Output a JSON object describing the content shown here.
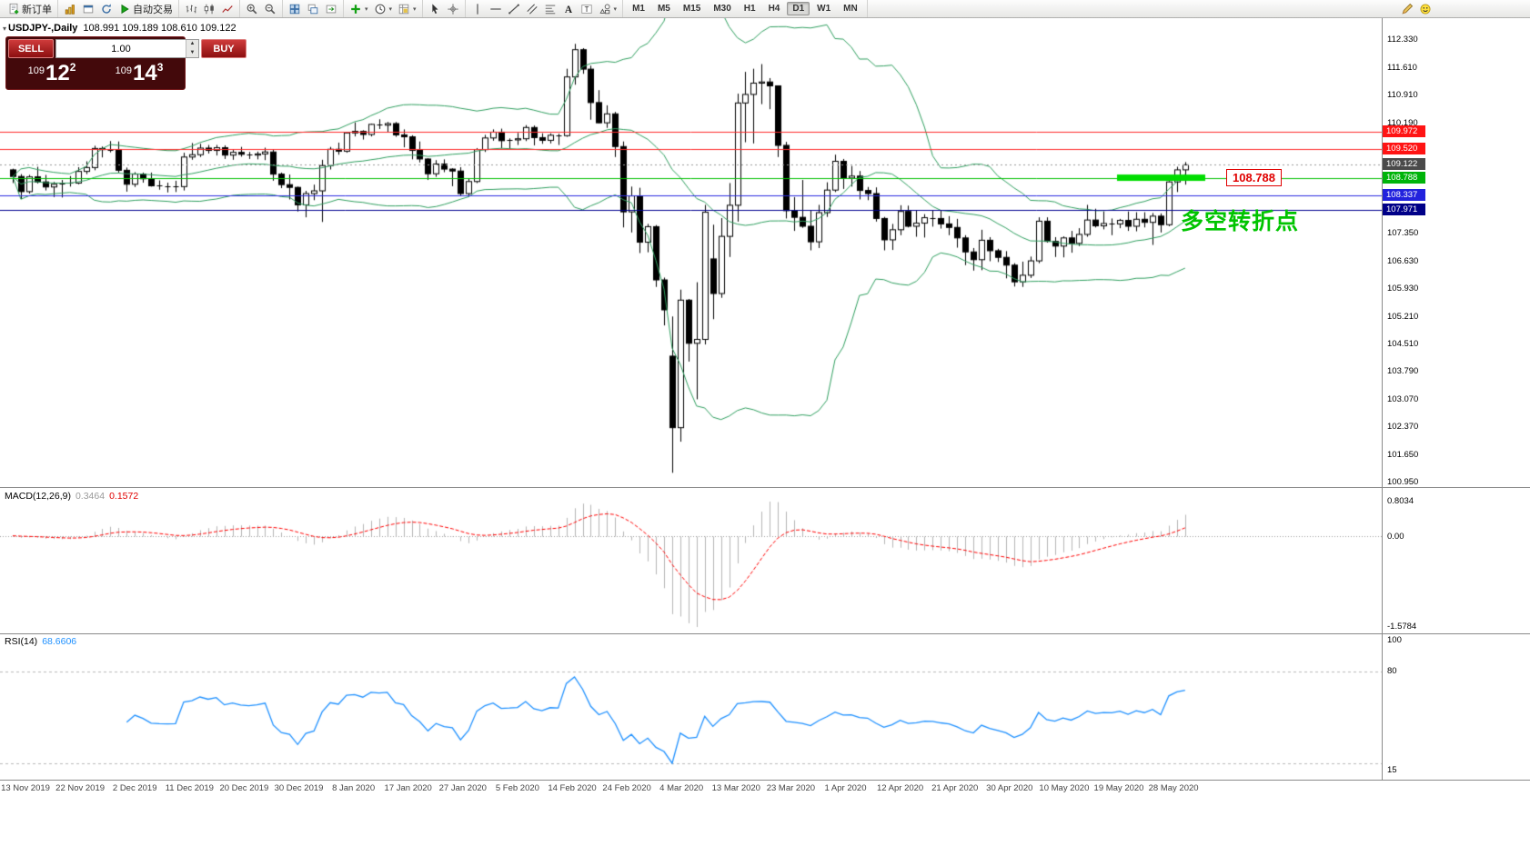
{
  "toolbar": {
    "groups": [
      {
        "items": [
          {
            "name": "new-order",
            "icon": "doc-plus",
            "label": "新订单"
          }
        ]
      },
      {
        "items": [
          {
            "name": "market-watch",
            "icon": "gold-chart"
          },
          {
            "name": "new-chart-window",
            "icon": "window"
          },
          {
            "name": "refresh-charts",
            "icon": "refresh"
          },
          {
            "name": "autotrading",
            "icon": "play",
            "label": "自动交易"
          }
        ]
      },
      {
        "items": [
          {
            "name": "bar-chart-mode",
            "icon": "bars"
          },
          {
            "name": "candlestick-mode",
            "icon": "candles"
          },
          {
            "name": "line-chart-mode",
            "icon": "line"
          }
        ]
      },
      {
        "items": [
          {
            "name": "zoom-in",
            "icon": "zoom-in"
          },
          {
            "name": "zoom-out",
            "icon": "zoom-out"
          }
        ]
      },
      {
        "items": [
          {
            "name": "tile-windows",
            "icon": "tile"
          },
          {
            "name": "cascade-windows",
            "icon": "arrange"
          },
          {
            "name": "auto-scroll",
            "icon": "track"
          }
        ]
      },
      {
        "items": [
          {
            "name": "indicators-list",
            "icon": "ind-plus",
            "caret": true
          },
          {
            "name": "periods",
            "icon": "clock",
            "caret": true
          },
          {
            "name": "templates",
            "icon": "template",
            "caret": true
          }
        ]
      },
      {
        "items": [
          {
            "name": "cursor-tool",
            "icon": "cursor"
          },
          {
            "name": "crosshair-tool",
            "icon": "crosshair"
          }
        ]
      },
      {
        "items": [
          {
            "name": "vertical-line-tool",
            "icon": "vline"
          },
          {
            "name": "horizontal-line-tool",
            "icon": "hline"
          },
          {
            "name": "trendline-tool",
            "icon": "trend"
          },
          {
            "name": "equidistant-channel-tool",
            "icon": "channel"
          },
          {
            "name": "fibonacci-tool",
            "icon": "fibo"
          },
          {
            "name": "text-tool",
            "icon": "textA"
          },
          {
            "name": "text-label-tool",
            "icon": "labelT"
          },
          {
            "name": "shapes-tool",
            "icon": "shapes",
            "caret": true
          }
        ]
      }
    ],
    "timeframes": [
      "M1",
      "M5",
      "M15",
      "M30",
      "H1",
      "H4",
      "D1",
      "W1",
      "MN"
    ],
    "active_timeframe": "D1",
    "right_icons": [
      {
        "name": "pencil"
      },
      {
        "name": "smiley"
      }
    ],
    "caret_glyph": "▾"
  },
  "chart": {
    "symbol": "USDJPY-,Daily",
    "ohlc_text": "108.991 109.189 108.610 109.122",
    "toggle_glyph": "▾",
    "price_scale": [
      "112.330",
      "111.610",
      "110.910",
      "110.190",
      "107.350",
      "106.630",
      "105.930",
      "105.210",
      "104.510",
      "103.790",
      "103.070",
      "102.370",
      "101.650",
      "100.950"
    ],
    "price_tags": [
      {
        "text": "109.972",
        "value": 109.972,
        "bg": "#ff1414"
      },
      {
        "text": "109.520",
        "value": 109.52,
        "bg": "#ff1414"
      },
      {
        "text": "109.122",
        "value": 109.122,
        "bg": "#4a4a4a"
      },
      {
        "text": "108.788",
        "value": 108.788,
        "bg": "#00b40a"
      },
      {
        "text": "108.337",
        "value": 108.337,
        "bg": "#2222dd"
      },
      {
        "text": "107.971",
        "value": 107.971,
        "bg": "#000088"
      }
    ],
    "levels": [
      {
        "value": 109.972,
        "color": "#ff2a2a"
      },
      {
        "value": 109.52,
        "color": "#ff2a2a"
      },
      {
        "value": 108.788,
        "color": "#00c000"
      },
      {
        "value": 108.337,
        "color": "#2a2ae0"
      },
      {
        "value": 107.971,
        "color": "#000090"
      }
    ],
    "current_price": {
      "value": 109.122,
      "line_color": "#999999"
    },
    "support": {
      "label": "108.788",
      "value": 108.788,
      "color": "#00dd00"
    },
    "annotation": {
      "text": "多空转折点",
      "color": "#00c400"
    },
    "dates": [
      "13 Nov 2019",
      "22 Nov 2019",
      "2 Dec 2019",
      "11 Dec 2019",
      "20 Dec 2019",
      "30 Dec 2019",
      "8 Jan 2020",
      "17 Jan 2020",
      "27 Jan 2020",
      "5 Feb 2020",
      "14 Feb 2020",
      "24 Feb 2020",
      "4 Mar 2020",
      "13 Mar 2020",
      "23 Mar 2020",
      "1 Apr 2020",
      "12 Apr 2020",
      "21 Apr 2020",
      "30 Apr 2020",
      "10 May 2020",
      "19 May 2020",
      "28 May 2020"
    ]
  },
  "trade_panel": {
    "sell_label": "SELL",
    "buy_label": "BUY",
    "volume": "1.00",
    "spinner_up": "▲",
    "spinner_down": "▼",
    "sell_price": {
      "base": "109",
      "pips": "12",
      "fraction": "2"
    },
    "buy_price": {
      "base": "109",
      "pips": "14",
      "fraction": "3"
    }
  },
  "indicators": {
    "macd": {
      "name": "MACD(12,26,9)",
      "value_main": "0.3464",
      "value_signal": "0.1572",
      "scale_top": "0.8034",
      "scale_zero": "0.00",
      "scale_bottom": "-1.5784",
      "hist_color": "#b4b4b4",
      "signal_color": "#ff0000"
    },
    "rsi": {
      "name": "RSI(14)",
      "value": "68.6606",
      "scale_top": "100",
      "level_label": "80",
      "scale_bottom": "15",
      "line_color": "#1e90ff",
      "level_color": "#b8b8b8"
    }
  },
  "chart_data": {
    "type": "candlestick",
    "symbol": "USDJPY",
    "timeframe": "Daily",
    "ohlc_current": {
      "open": 108.991,
      "high": 109.189,
      "low": 108.61,
      "close": 109.122
    },
    "colors": {
      "candle_up": "#ffffff",
      "candle_down": "#000000",
      "outline": "#000000",
      "bollinger": "#2e9e5e"
    },
    "bollinger": {
      "period": 20,
      "deviation": 2
    },
    "key_levels": [
      109.972,
      109.52,
      108.788,
      108.337,
      107.971
    ],
    "candles": [
      [
        108.99,
        109.02,
        108.65,
        108.82
      ],
      [
        108.82,
        108.88,
        108.24,
        108.43
      ],
      [
        108.43,
        108.86,
        108.38,
        108.81
      ],
      [
        108.81,
        109.07,
        108.64,
        108.68
      ],
      [
        108.68,
        108.86,
        108.46,
        108.55
      ],
      [
        108.55,
        108.68,
        108.29,
        108.62
      ],
      [
        108.62,
        108.73,
        108.28,
        108.63
      ],
      [
        108.63,
        108.83,
        108.56,
        108.65
      ],
      [
        108.65,
        109.06,
        108.62,
        108.95
      ],
      [
        108.95,
        109.21,
        108.88,
        109.05
      ],
      [
        109.05,
        109.61,
        108.98,
        109.54
      ],
      [
        109.54,
        109.59,
        109.31,
        109.51
      ],
      [
        109.51,
        109.73,
        109.44,
        109.49
      ],
      [
        109.49,
        109.72,
        108.92,
        108.98
      ],
      [
        108.98,
        109.05,
        108.43,
        108.62
      ],
      [
        108.62,
        108.93,
        108.55,
        108.88
      ],
      [
        108.88,
        108.92,
        108.66,
        108.76
      ],
      [
        108.76,
        108.92,
        108.56,
        108.58
      ],
      [
        108.58,
        108.72,
        108.48,
        108.56
      ],
      [
        108.56,
        108.66,
        108.41,
        108.55
      ],
      [
        108.55,
        108.71,
        108.42,
        108.56
      ],
      [
        108.56,
        109.43,
        108.46,
        109.32
      ],
      [
        109.32,
        109.68,
        109.25,
        109.38
      ],
      [
        109.38,
        109.66,
        109.32,
        109.55
      ],
      [
        109.55,
        109.63,
        109.41,
        109.49
      ],
      [
        109.49,
        109.63,
        109.36,
        109.56
      ],
      [
        109.56,
        109.62,
        109.27,
        109.37
      ],
      [
        109.37,
        109.5,
        109.25,
        109.44
      ],
      [
        109.44,
        109.58,
        109.33,
        109.39
      ],
      [
        109.39,
        109.45,
        109.27,
        109.37
      ],
      [
        109.37,
        109.46,
        109.26,
        109.4
      ],
      [
        109.4,
        109.56,
        109.24,
        109.45
      ],
      [
        109.45,
        109.51,
        108.71,
        108.88
      ],
      [
        108.88,
        108.92,
        108.52,
        108.61
      ],
      [
        108.61,
        108.87,
        108.23,
        108.54
      ],
      [
        108.54,
        108.56,
        107.92,
        108.09
      ],
      [
        108.09,
        108.45,
        107.77,
        108.38
      ],
      [
        108.38,
        108.61,
        108.21,
        108.45
      ],
      [
        108.45,
        109.25,
        107.65,
        109.1
      ],
      [
        109.1,
        109.58,
        109.0,
        109.52
      ],
      [
        109.52,
        109.69,
        109.38,
        109.47
      ],
      [
        109.47,
        109.95,
        109.43,
        109.94
      ],
      [
        109.94,
        110.21,
        109.85,
        109.98
      ],
      [
        109.98,
        110.01,
        109.77,
        109.9
      ],
      [
        109.9,
        110.18,
        109.85,
        110.16
      ],
      [
        110.16,
        110.29,
        110.04,
        110.14
      ],
      [
        110.14,
        110.22,
        109.95,
        110.18
      ],
      [
        110.18,
        110.22,
        109.84,
        109.89
      ],
      [
        109.89,
        110.03,
        109.57,
        109.84
      ],
      [
        109.84,
        109.88,
        109.26,
        109.49
      ],
      [
        109.49,
        109.72,
        109.18,
        109.27
      ],
      [
        109.27,
        109.29,
        108.73,
        108.89
      ],
      [
        108.89,
        109.24,
        108.81,
        109.14
      ],
      [
        109.14,
        109.26,
        108.93,
        109.01
      ],
      [
        109.01,
        109.03,
        108.57,
        108.96
      ],
      [
        108.96,
        109.06,
        108.31,
        108.38
      ],
      [
        108.38,
        108.76,
        108.3,
        108.69
      ],
      [
        108.69,
        109.55,
        108.65,
        109.51
      ],
      [
        109.51,
        109.89,
        109.45,
        109.81
      ],
      [
        109.81,
        110.03,
        109.74,
        109.96
      ],
      [
        109.96,
        110.05,
        109.55,
        109.74
      ],
      [
        109.74,
        109.8,
        109.53,
        109.76
      ],
      [
        109.76,
        109.94,
        109.63,
        109.79
      ],
      [
        109.79,
        110.14,
        109.73,
        110.08
      ],
      [
        110.08,
        110.13,
        109.62,
        109.82
      ],
      [
        109.82,
        109.93,
        109.66,
        109.75
      ],
      [
        109.75,
        109.93,
        109.67,
        109.88
      ],
      [
        109.88,
        109.92,
        109.63,
        109.87
      ],
      [
        109.87,
        111.59,
        109.84,
        111.38
      ],
      [
        111.38,
        112.23,
        111.18,
        112.08
      ],
      [
        112.08,
        112.12,
        111.46,
        111.58
      ],
      [
        111.58,
        111.67,
        110.28,
        110.72
      ],
      [
        110.72,
        111.04,
        110.19,
        110.2
      ],
      [
        110.2,
        110.65,
        110.07,
        110.43
      ],
      [
        110.43,
        110.48,
        109.32,
        109.59
      ],
      [
        109.59,
        109.72,
        107.51,
        107.91
      ],
      [
        107.91,
        108.56,
        107.38,
        108.32
      ],
      [
        108.32,
        108.53,
        106.85,
        107.13
      ],
      [
        107.13,
        107.6,
        106.87,
        107.53
      ],
      [
        107.53,
        107.57,
        105.98,
        106.16
      ],
      [
        106.16,
        106.22,
        104.99,
        105.39
      ],
      [
        104.2,
        105.22,
        101.2,
        102.36
      ],
      [
        102.36,
        105.91,
        102.0,
        105.64
      ],
      [
        105.64,
        105.67,
        104.06,
        104.53
      ],
      [
        104.53,
        106.1,
        103.09,
        104.63
      ],
      [
        104.63,
        108.09,
        104.5,
        107.9
      ],
      [
        106.7,
        107.58,
        105.15,
        105.81
      ],
      [
        105.81,
        107.75,
        105.7,
        107.28
      ],
      [
        107.28,
        108.65,
        106.75,
        108.08
      ],
      [
        108.08,
        110.95,
        107.66,
        110.71
      ],
      [
        110.71,
        111.51,
        109.7,
        110.93
      ],
      [
        110.93,
        111.59,
        109.67,
        111.22
      ],
      [
        111.22,
        111.71,
        110.68,
        111.25
      ],
      [
        111.25,
        111.35,
        110.55,
        111.15
      ],
      [
        111.15,
        111.15,
        109.32,
        109.62
      ],
      [
        109.62,
        109.71,
        107.74,
        107.94
      ],
      [
        107.94,
        108.29,
        107.42,
        107.77
      ],
      [
        107.77,
        108.73,
        107.5,
        107.54
      ],
      [
        107.54,
        107.95,
        106.92,
        107.14
      ],
      [
        107.14,
        108.09,
        106.98,
        107.89
      ],
      [
        107.89,
        108.67,
        107.78,
        108.47
      ],
      [
        108.47,
        109.38,
        108.42,
        109.21
      ],
      [
        109.21,
        109.27,
        108.5,
        108.78
      ],
      [
        108.78,
        109.09,
        108.56,
        108.83
      ],
      [
        108.83,
        108.96,
        108.23,
        108.46
      ],
      [
        108.46,
        108.55,
        108.21,
        108.38
      ],
      [
        108.38,
        108.54,
        107.66,
        107.74
      ],
      [
        107.74,
        107.78,
        106.92,
        107.19
      ],
      [
        107.19,
        107.6,
        106.93,
        107.45
      ],
      [
        107.45,
        108.08,
        107.31,
        107.92
      ],
      [
        107.92,
        108.07,
        107.51,
        107.54
      ],
      [
        107.54,
        107.95,
        107.27,
        107.62
      ],
      [
        107.62,
        107.85,
        107.25,
        107.76
      ],
      [
        107.76,
        107.94,
        107.53,
        107.74
      ],
      [
        107.74,
        107.96,
        107.48,
        107.6
      ],
      [
        107.6,
        107.8,
        107.31,
        107.51
      ],
      [
        107.51,
        107.73,
        106.99,
        107.24
      ],
      [
        107.24,
        107.31,
        106.54,
        106.88
      ],
      [
        106.88,
        106.98,
        106.4,
        106.68
      ],
      [
        106.68,
        107.45,
        106.41,
        107.18
      ],
      [
        107.18,
        107.26,
        106.64,
        106.91
      ],
      [
        106.91,
        106.96,
        106.62,
        106.74
      ],
      [
        106.74,
        106.9,
        106.2,
        106.54
      ],
      [
        106.54,
        106.59,
        105.99,
        106.11
      ],
      [
        106.11,
        106.63,
        105.98,
        106.28
      ],
      [
        106.28,
        106.76,
        106.21,
        106.65
      ],
      [
        106.65,
        107.77,
        106.59,
        107.67
      ],
      [
        107.67,
        107.77,
        107.12,
        107.15
      ],
      [
        107.15,
        107.26,
        106.75,
        107.03
      ],
      [
        107.03,
        107.28,
        106.74,
        107.24
      ],
      [
        107.24,
        107.42,
        106.86,
        107.1
      ],
      [
        107.1,
        107.49,
        107.03,
        107.33
      ],
      [
        107.33,
        108.09,
        107.27,
        107.7
      ],
      [
        107.7,
        107.99,
        107.51,
        107.55
      ],
      [
        107.55,
        107.92,
        107.46,
        107.61
      ],
      [
        107.61,
        107.74,
        107.31,
        107.6
      ],
      [
        107.6,
        107.73,
        107.49,
        107.69
      ],
      [
        107.69,
        107.92,
        107.42,
        107.54
      ],
      [
        107.54,
        107.9,
        107.41,
        107.72
      ],
      [
        107.72,
        107.9,
        107.51,
        107.64
      ],
      [
        107.64,
        107.88,
        107.06,
        107.8
      ],
      [
        107.8,
        107.87,
        107.38,
        107.58
      ],
      [
        107.58,
        108.7,
        107.54,
        108.68
      ],
      [
        108.68,
        109.07,
        108.42,
        108.99
      ],
      [
        108.99,
        109.19,
        108.61,
        109.12
      ]
    ]
  }
}
